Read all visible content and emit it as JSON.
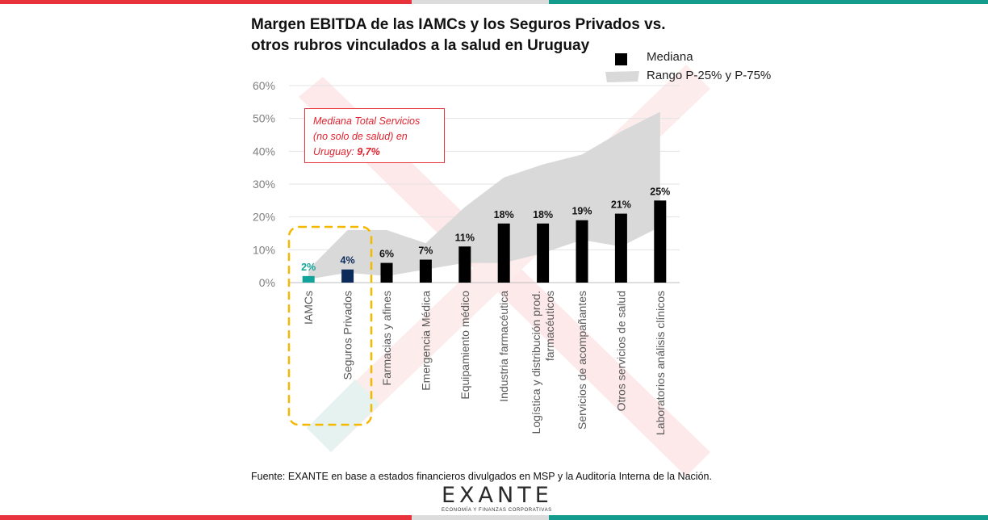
{
  "header": {
    "title_line1": "Margen EBITDA de las IAMCs y los Seguros Privados vs.",
    "title_line2": "otros rubros vinculados a la salud en Uruguay"
  },
  "colors": {
    "brand_red": "#e8333c",
    "brand_gray": "#dcdcdc",
    "brand_teal": "#139c8e",
    "iamc_bar": "#12a49a",
    "seguros_bar": "#0d2b5a",
    "median_bar": "#000000",
    "range_fill": "#d9d9d9",
    "highlight_box": "#f5b800"
  },
  "legend": {
    "median_label": "Mediana",
    "range_label": "Rango P-25% y P-75%"
  },
  "annotation": {
    "line1": "Mediana Total Servicios",
    "line2": "(no solo de salud) en",
    "line3_prefix": "Uruguay: ",
    "line3_value": "9,7%"
  },
  "chart_data": {
    "type": "bar",
    "categories": [
      "IAMCs",
      "Seguros Privados",
      "Farmacias y afines",
      "Emergencia Médica",
      "Equipamiento médico",
      "Industria farmacéutica",
      "Logística y distribución prod. farmacéuticos",
      "Servicios de acompañantes",
      "Otros servicios de salud",
      "Laboratorios análisis clínicos"
    ],
    "category_lines": [
      [
        "IAMCs"
      ],
      [
        "Seguros Privados"
      ],
      [
        "Farmacias y afines"
      ],
      [
        "Emergencia Médica"
      ],
      [
        "Equipamiento médico"
      ],
      [
        "Industria farmacéutica"
      ],
      [
        "Logística y distribución prod.",
        "farmacéuticos"
      ],
      [
        "Servicios de acompañantes"
      ],
      [
        "Otros servicios de salud"
      ],
      [
        "Laboratorios análisis clínicos"
      ]
    ],
    "series": [
      {
        "name": "Mediana",
        "values": [
          2,
          4,
          6,
          7,
          11,
          18,
          18,
          19,
          21,
          25
        ]
      },
      {
        "name": "Rango P-25% y P-75%",
        "low": [
          1,
          3,
          2,
          4,
          6,
          6,
          9,
          13,
          11,
          17
        ],
        "high": [
          4,
          16,
          16,
          12,
          23,
          32,
          36,
          39,
          46,
          52
        ]
      }
    ],
    "value_labels": [
      "2%",
      "4%",
      "6%",
      "7%",
      "11%",
      "18%",
      "18%",
      "19%",
      "21%",
      "25%"
    ],
    "y_ticks": [
      "0%",
      "10%",
      "20%",
      "30%",
      "40%",
      "50%",
      "60%"
    ],
    "ylim": [
      0,
      60
    ],
    "grid": true,
    "legend_position": "top-right"
  },
  "footer": {
    "source": "Fuente: EXANTE en base a estados financieros divulgados en MSP y la Auditoría Interna de la Nación.",
    "logo_word": "EXANTE",
    "logo_sub": "ECONOMÍA Y FINANZAS CORPORATIVAS"
  }
}
